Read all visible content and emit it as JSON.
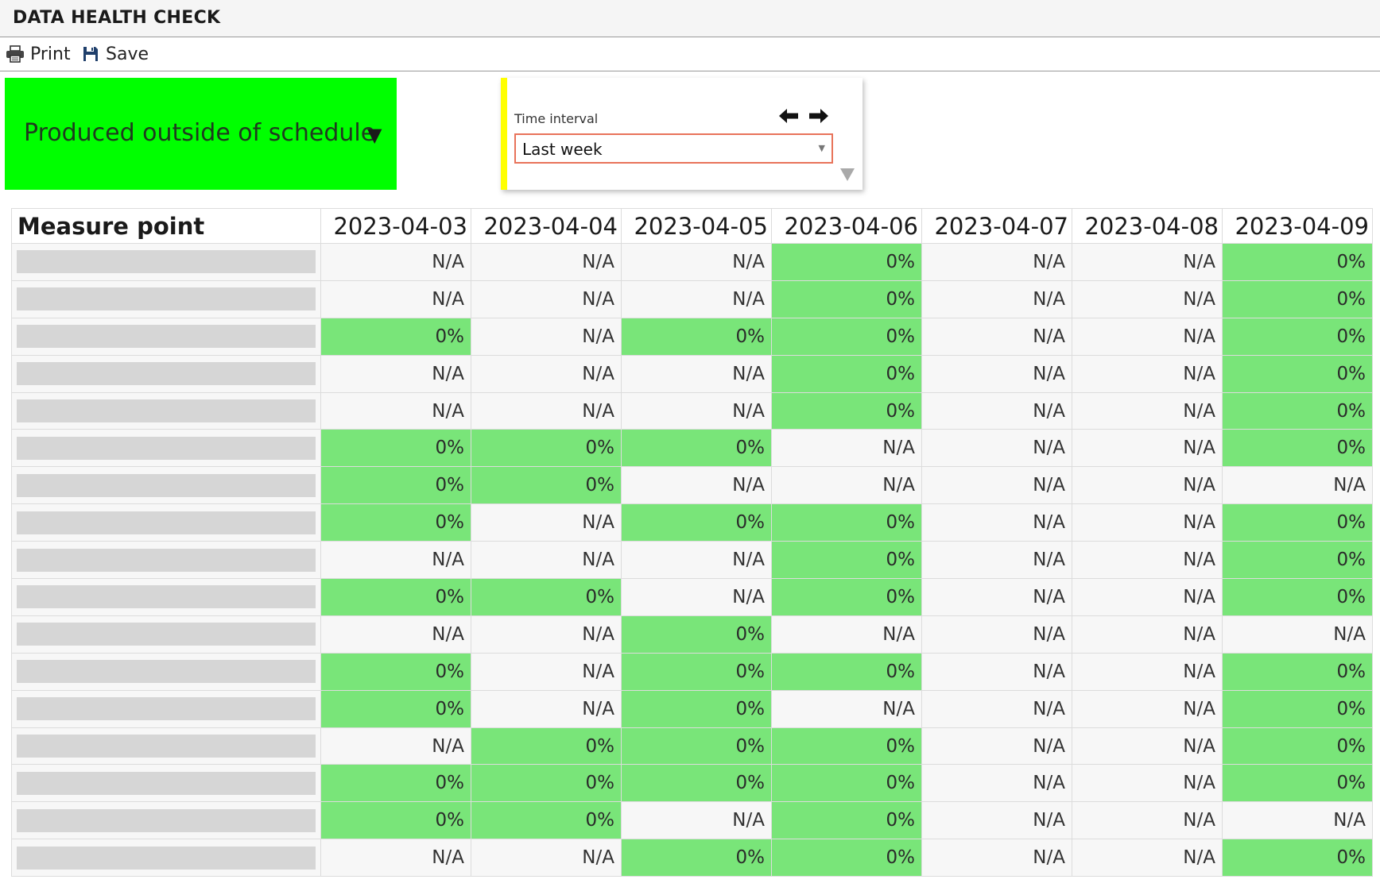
{
  "app": {
    "title": "DATA HEALTH CHECK"
  },
  "toolbar": {
    "print_label": "Print",
    "save_label": "Save",
    "print_icon": "printer-icon",
    "save_icon": "floppy-disk-icon"
  },
  "measure_selector": {
    "label": "Produced outside of schedule",
    "caret": "▼",
    "background_color": "#00ff00"
  },
  "time_interval": {
    "label": "Time interval",
    "selected": "Last week",
    "accent_color": "#ffff00",
    "border_color": "#e8735a"
  },
  "table": {
    "header_first": "Measure point",
    "dates": [
      "2023-04-03",
      "2023-04-04",
      "2023-04-05",
      "2023-04-06",
      "2023-04-07",
      "2023-04-08",
      "2023-04-09"
    ],
    "ok_color": "#79e579",
    "rows": [
      [
        "N/A",
        "N/A",
        "N/A",
        "0%",
        "N/A",
        "N/A",
        "0%"
      ],
      [
        "N/A",
        "N/A",
        "N/A",
        "0%",
        "N/A",
        "N/A",
        "0%"
      ],
      [
        "0%",
        "N/A",
        "0%",
        "0%",
        "N/A",
        "N/A",
        "0%"
      ],
      [
        "N/A",
        "N/A",
        "N/A",
        "0%",
        "N/A",
        "N/A",
        "0%"
      ],
      [
        "N/A",
        "N/A",
        "N/A",
        "0%",
        "N/A",
        "N/A",
        "0%"
      ],
      [
        "0%",
        "0%",
        "0%",
        "N/A",
        "N/A",
        "N/A",
        "0%"
      ],
      [
        "0%",
        "0%",
        "N/A",
        "N/A",
        "N/A",
        "N/A",
        "N/A"
      ],
      [
        "0%",
        "N/A",
        "0%",
        "0%",
        "N/A",
        "N/A",
        "0%"
      ],
      [
        "N/A",
        "N/A",
        "N/A",
        "0%",
        "N/A",
        "N/A",
        "0%"
      ],
      [
        "0%",
        "0%",
        "N/A",
        "0%",
        "N/A",
        "N/A",
        "0%"
      ],
      [
        "N/A",
        "N/A",
        "0%",
        "N/A",
        "N/A",
        "N/A",
        "N/A"
      ],
      [
        "0%",
        "N/A",
        "0%",
        "0%",
        "N/A",
        "N/A",
        "0%"
      ],
      [
        "0%",
        "N/A",
        "0%",
        "N/A",
        "N/A",
        "N/A",
        "0%"
      ],
      [
        "N/A",
        "0%",
        "0%",
        "0%",
        "N/A",
        "N/A",
        "0%"
      ],
      [
        "0%",
        "0%",
        "0%",
        "0%",
        "N/A",
        "N/A",
        "0%"
      ],
      [
        "0%",
        "0%",
        "N/A",
        "0%",
        "N/A",
        "N/A",
        "N/A"
      ],
      [
        "N/A",
        "N/A",
        "0%",
        "0%",
        "N/A",
        "N/A",
        "0%"
      ]
    ]
  }
}
